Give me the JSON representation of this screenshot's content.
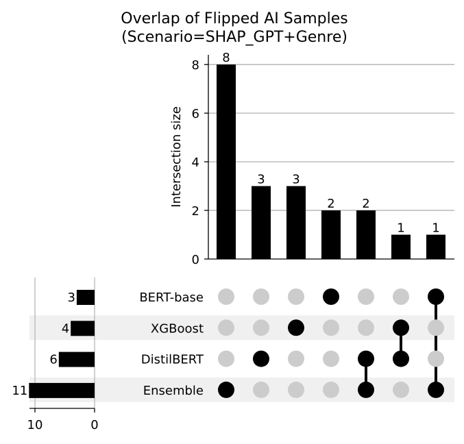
{
  "chart_data": {
    "type": "bar",
    "title": "Overlap of Flipped AI Samples\n(Scenario=SHAP_GPT+Genre)",
    "ylabel": "Intersection size",
    "ylim": [
      0,
      8.4
    ],
    "yticks": [
      0,
      2,
      4,
      6,
      8
    ],
    "grid": true,
    "sets": [
      "BERT-base",
      "XGBoost",
      "DistilBERT",
      "Ensemble"
    ],
    "set_sizes": [
      3,
      4,
      6,
      11
    ],
    "set_size_ticks": [
      10,
      0
    ],
    "set_size_xlim": [
      11.3,
      0
    ],
    "intersections": [
      {
        "members": [
          "Ensemble"
        ],
        "value": 8
      },
      {
        "members": [
          "DistilBERT"
        ],
        "value": 3
      },
      {
        "members": [
          "XGBoost"
        ],
        "value": 3
      },
      {
        "members": [
          "BERT-base"
        ],
        "value": 2
      },
      {
        "members": [
          "DistilBERT",
          "Ensemble"
        ],
        "value": 2
      },
      {
        "members": [
          "XGBoost",
          "DistilBERT"
        ],
        "value": 1
      },
      {
        "members": [
          "BERT-base",
          "Ensemble"
        ],
        "value": 1
      }
    ],
    "colors": {
      "bar": "#000000",
      "dot_active": "#000000",
      "dot_inactive": "#cccccc",
      "grid": "#b0b0b0",
      "stripe": "#f0f0f0"
    }
  }
}
